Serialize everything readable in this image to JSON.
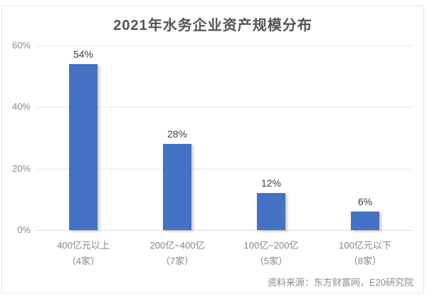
{
  "chart": {
    "title": "2021年水务企业资产规模分布",
    "source": "资料来源：东方财富网，E20研究院",
    "accent_color": "#4472C4",
    "y_axis": {
      "ticks": [
        {
          "value": 60,
          "label": "60%"
        },
        {
          "value": 40,
          "label": "40%"
        },
        {
          "value": 20,
          "label": "20%"
        },
        {
          "value": 0,
          "label": "0%"
        }
      ]
    },
    "bars": [
      {
        "category": "400亿元以上",
        "count": "（4家）",
        "value": 54,
        "value_label": "54%"
      },
      {
        "category": "200亿~400亿",
        "count": "（7家）",
        "value": 28,
        "value_label": "28%"
      },
      {
        "category": "100亿~200亿",
        "count": "（5家）",
        "value": 12,
        "value_label": "12%"
      },
      {
        "category": "100亿元以下",
        "count": "（8家）",
        "value": 6,
        "value_label": "6%"
      }
    ]
  },
  "chart_data": {
    "type": "bar",
    "title": "2021年水务企业资产规模分布",
    "categories": [
      "400亿元以上（4家）",
      "200亿~400亿（7家）",
      "100亿~200亿（5家）",
      "100亿元以下（8家）"
    ],
    "values": [
      54,
      28,
      12,
      6
    ],
    "data_labels": [
      "54%",
      "28%",
      "12%",
      "6%"
    ],
    "unit": "%",
    "xlabel": "",
    "ylabel": "",
    "ylim": [
      0,
      60
    ],
    "y_ticks": [
      0,
      20,
      40,
      60
    ],
    "grid": true,
    "legend": "none",
    "bar_color": "#4472C4",
    "source": "资料来源：东方财富网，E20研究院"
  }
}
